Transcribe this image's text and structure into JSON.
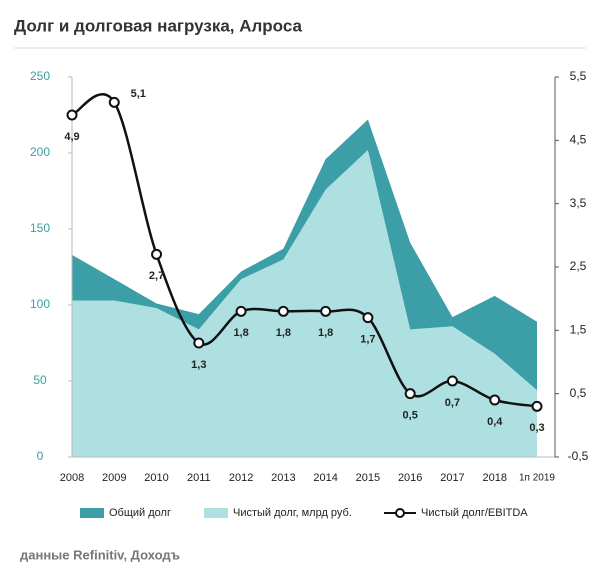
{
  "chart_data": {
    "type": "area-line",
    "title": "Долг и долговая нагрузка, Алроса",
    "source": "данные Refinitiv, Доходъ",
    "categories": [
      "2008",
      "2009",
      "2010",
      "2011",
      "2012",
      "2013",
      "2014",
      "2015",
      "2016",
      "2017",
      "2018",
      "1п 2019"
    ],
    "series": [
      {
        "name": "Общий долг",
        "color": "#3c9ea6",
        "values": [
          133,
          117,
          101,
          94,
          122,
          137,
          196,
          222,
          141,
          92,
          106,
          89
        ]
      },
      {
        "name": "Чистый долг, млрд руб.",
        "color": "#aee0e1",
        "values": [
          103,
          103,
          98,
          84,
          117,
          130,
          176,
          202,
          84,
          86,
          68,
          44
        ]
      },
      {
        "name": "Чистый долг/EBITDA",
        "color": "#111111",
        "axis": "y2",
        "values": [
          4.9,
          5.1,
          2.7,
          1.3,
          1.8,
          1.8,
          1.8,
          1.7,
          0.5,
          0.7,
          0.4,
          0.3
        ],
        "value_labels": [
          "4,9",
          "5,1",
          "2,7",
          "1,3",
          "1,8",
          "1,8",
          "1,8",
          "1,7",
          "0,5",
          "0,7",
          "0,4",
          "0,3"
        ]
      }
    ],
    "ylim": [
      0,
      250
    ],
    "yticks": [
      0,
      50,
      100,
      150,
      200,
      250
    ],
    "y2lim": [
      -0.5,
      5.5
    ],
    "y2ticks": [
      {
        "value": -0.5,
        "label": "-0,5"
      },
      {
        "value": 0.5,
        "label": "0,5"
      },
      {
        "value": 1.5,
        "label": "1,5"
      },
      {
        "value": 2.5,
        "label": "2,5"
      },
      {
        "value": 3.5,
        "label": "3,5"
      },
      {
        "value": 4.5,
        "label": "4,5"
      },
      {
        "value": 5.5,
        "label": "5,5"
      }
    ]
  }
}
